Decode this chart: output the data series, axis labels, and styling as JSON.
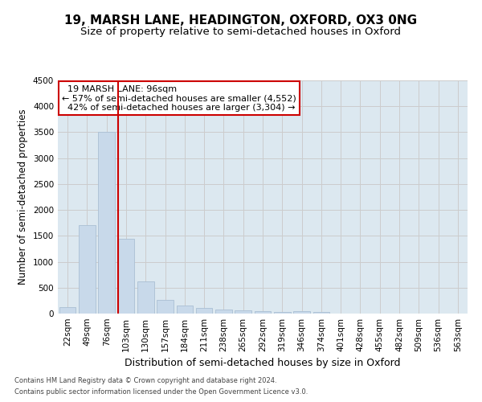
{
  "title": "19, MARSH LANE, HEADINGTON, OXFORD, OX3 0NG",
  "subtitle": "Size of property relative to semi-detached houses in Oxford",
  "xlabel": "Distribution of semi-detached houses by size in Oxford",
  "ylabel": "Number of semi-detached properties",
  "categories": [
    "22sqm",
    "49sqm",
    "76sqm",
    "103sqm",
    "130sqm",
    "157sqm",
    "184sqm",
    "211sqm",
    "238sqm",
    "265sqm",
    "292sqm",
    "319sqm",
    "346sqm",
    "374sqm",
    "401sqm",
    "428sqm",
    "455sqm",
    "482sqm",
    "509sqm",
    "536sqm",
    "563sqm"
  ],
  "values": [
    130,
    1700,
    3500,
    1450,
    620,
    270,
    150,
    110,
    80,
    55,
    40,
    30,
    50,
    30,
    0,
    0,
    0,
    0,
    0,
    0,
    0
  ],
  "bar_color": "#c8d9ea",
  "bar_edge_color": "#aabfd4",
  "marker_label": "19 MARSH LANE: 96sqm",
  "pct_smaller": 57,
  "n_smaller": 4552,
  "pct_larger": 42,
  "n_larger": 3304,
  "vline_x": 2.57,
  "vline_color": "#cc0000",
  "annotation_box_facecolor": "#ffffff",
  "annotation_box_edgecolor": "#cc0000",
  "ylim": [
    0,
    4500
  ],
  "yticks": [
    0,
    500,
    1000,
    1500,
    2000,
    2500,
    3000,
    3500,
    4000,
    4500
  ],
  "grid_color": "#cccccc",
  "bg_color": "#dce8f0",
  "footer_line1": "Contains HM Land Registry data © Crown copyright and database right 2024.",
  "footer_line2": "Contains public sector information licensed under the Open Government Licence v3.0.",
  "title_fontsize": 11,
  "subtitle_fontsize": 9.5,
  "tick_fontsize": 7.5,
  "ylabel_fontsize": 8.5,
  "xlabel_fontsize": 9,
  "ann_fontsize": 8,
  "footer_fontsize": 6
}
